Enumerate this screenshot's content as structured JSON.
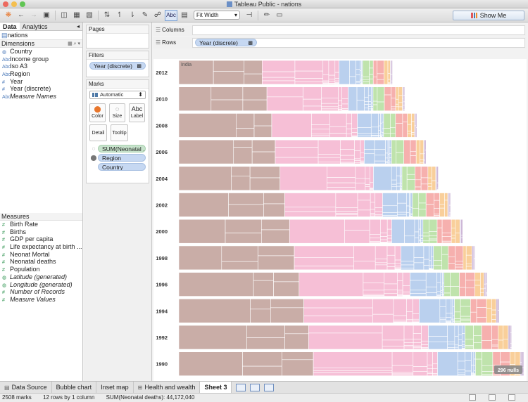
{
  "window": {
    "title": "Tableau Public - nations"
  },
  "toolbar": {
    "abc_label": "Abc",
    "fit": "Fit Width",
    "show_me": "Show Me"
  },
  "datapane": {
    "tabs": [
      "Data",
      "Analytics"
    ],
    "datasource": "nations",
    "dimensions_header": "Dimensions",
    "dimensions": [
      {
        "icon": "globe-icon",
        "glyph": "◍",
        "label": "Country",
        "italic": false
      },
      {
        "icon": "abc-icon",
        "glyph": "Abc",
        "label": "Income group",
        "italic": false
      },
      {
        "icon": "abc-icon",
        "glyph": "Abc",
        "label": "Iso A3",
        "italic": false
      },
      {
        "icon": "abc-icon",
        "glyph": "Abc",
        "label": "Region",
        "italic": false
      },
      {
        "icon": "number-icon",
        "glyph": "#",
        "label": "Year",
        "italic": false
      },
      {
        "icon": "number-icon",
        "glyph": "#",
        "label": "Year (discrete)",
        "italic": false
      },
      {
        "icon": "abc-icon",
        "glyph": "Abc",
        "label": "Measure Names",
        "italic": true
      }
    ],
    "measures_header": "Measures",
    "measures": [
      {
        "icon": "number-icon",
        "glyph": "#",
        "label": "Birth Rate",
        "italic": false
      },
      {
        "icon": "number-icon",
        "glyph": "#",
        "label": "Births",
        "italic": false
      },
      {
        "icon": "number-icon",
        "glyph": "#",
        "label": "GDP per capita",
        "italic": false
      },
      {
        "icon": "number-icon",
        "glyph": "#",
        "label": "Life expectancy at birth ...",
        "italic": false
      },
      {
        "icon": "number-icon",
        "glyph": "#",
        "label": "Neonat Mortal",
        "italic": false
      },
      {
        "icon": "number-icon",
        "glyph": "#",
        "label": "Neonatal deaths",
        "italic": false
      },
      {
        "icon": "number-icon",
        "glyph": "#",
        "label": "Population",
        "italic": false
      },
      {
        "icon": "globe-icon",
        "glyph": "◍",
        "label": "Latitude (generated)",
        "italic": true
      },
      {
        "icon": "globe-icon",
        "glyph": "◍",
        "label": "Longitude (generated)",
        "italic": true
      },
      {
        "icon": "number-icon",
        "glyph": "#",
        "label": "Number of Records",
        "italic": true
      },
      {
        "icon": "number-icon",
        "glyph": "#",
        "label": "Measure Values",
        "italic": true
      }
    ]
  },
  "shelves": {
    "pages_label": "Pages",
    "filters_label": "Filters",
    "filter_pill": "Year (discrete)",
    "marks_label": "Marks",
    "mark_type": "Automatic",
    "mark_buttons": [
      {
        "name": "color",
        "label": "Color",
        "glyph": "⬤"
      },
      {
        "name": "size",
        "label": "Size",
        "glyph": "◌"
      },
      {
        "name": "label",
        "label": "Label",
        "glyph": "Abc"
      }
    ],
    "mark_buttons2": [
      "Detail",
      "Tooltip"
    ],
    "mark_pills": [
      {
        "icon": "size-icon",
        "glyph": "◌",
        "label": "SUM(Neonatal ..",
        "color": "green"
      },
      {
        "icon": "color-icon",
        "glyph": "⬤",
        "label": "Region",
        "color": "blue"
      },
      {
        "icon": "detail-icon",
        "glyph": "",
        "label": "Country",
        "color": "blue"
      }
    ],
    "columns_label": "Columns",
    "rows_label": "Rows",
    "rows_pill": "Year (discrete)"
  },
  "sheet_tabs": [
    "Data Source",
    "Bubble chart",
    "Inset map",
    "Health and wealth",
    "Sheet 3"
  ],
  "active_sheet": "Sheet 3",
  "status": {
    "marks": "2508 marks",
    "rows": "12 rows by 1 column",
    "sum": "SUM(Neonatal deaths): 44,172,040"
  },
  "chart_data": {
    "type": "treemap",
    "rows": [
      "2012",
      "2010",
      "2008",
      "2006",
      "2004",
      "2002",
      "2000",
      "1998",
      "1996",
      "1994",
      "1992",
      "1990"
    ],
    "row_totals_relative": [
      0.7,
      0.74,
      0.78,
      0.81,
      0.85,
      0.89,
      0.93,
      0.97,
      1.01,
      1.05,
      1.09,
      1.13
    ],
    "segments": [
      "brown",
      "pink",
      "blue",
      "green",
      "red",
      "orange",
      "purple"
    ],
    "segment_colors": {
      "brown": "#c9ada7",
      "pink": "#f6bfd6",
      "blue": "#bad0ee",
      "green": "#bfe3ac",
      "red": "#f6b0ae",
      "orange": "#f9cf9a",
      "purple": "#cdb8d8"
    },
    "segment_shares": [
      0.39,
      0.36,
      0.11,
      0.05,
      0.05,
      0.03,
      0.01
    ],
    "annotation": "India",
    "nulls_badge": "296 nulls"
  }
}
